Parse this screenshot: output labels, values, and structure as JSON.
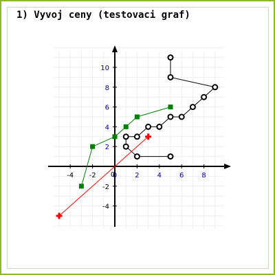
{
  "title": "1) Vyvoj ceny (testovaci graf)",
  "colors": {
    "frame": "#8db82c",
    "axis": "#000000",
    "grid": "#eeeeee",
    "x_tick_label": "#0000aa",
    "y_tick_label": "#0000aa",
    "neg_tick_label": "#000000",
    "series_black": "#000000",
    "series_green": "#008000",
    "series_red": "#ff0000"
  },
  "chart_data": {
    "type": "line",
    "title": "1) Vyvoj ceny (testovaci graf)",
    "xlabel": "",
    "ylabel": "",
    "xlim": [
      -5.5,
      9.8
    ],
    "ylim": [
      -6.3,
      12.2
    ],
    "grid": true,
    "x_ticks": [
      -4,
      -2,
      0,
      2,
      4,
      6,
      8
    ],
    "y_ticks": [
      -4,
      -2,
      2,
      4,
      6,
      8,
      10
    ],
    "series": [
      {
        "color": "#000000",
        "marker": "circle",
        "points": [
          [
            5,
            11
          ],
          [
            5,
            9
          ],
          [
            9,
            8
          ],
          [
            8,
            7
          ],
          [
            7,
            6
          ],
          [
            6,
            5
          ],
          [
            5,
            5
          ],
          [
            4,
            4
          ],
          [
            3,
            4
          ],
          [
            2,
            3
          ],
          [
            1,
            3
          ],
          [
            1,
            2
          ],
          [
            2,
            1
          ],
          [
            5,
            1
          ]
        ]
      },
      {
        "color": "#008000",
        "marker": "square",
        "points": [
          [
            -3,
            -2
          ],
          [
            -2,
            2
          ],
          [
            0,
            3
          ],
          [
            1,
            4
          ],
          [
            2,
            5
          ],
          [
            5,
            6
          ]
        ]
      },
      {
        "color": "#ff0000",
        "marker": "cross",
        "points": [
          [
            -5,
            -5
          ],
          [
            3,
            3
          ]
        ]
      }
    ]
  }
}
